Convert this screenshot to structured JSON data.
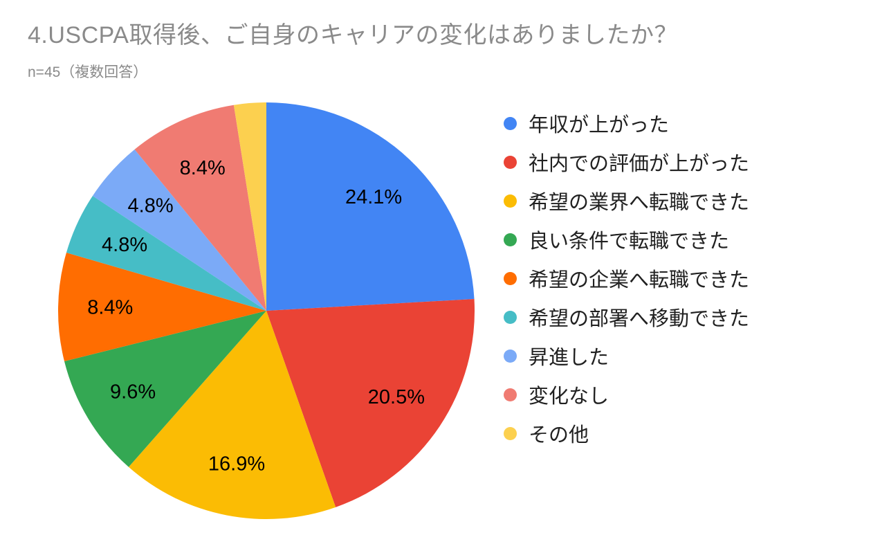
{
  "page": {
    "title": "4.USCPA取得後、ご自身のキャリアの変化はありましたか？",
    "subtitle": "n=45（複数回答）"
  },
  "chart_data": {
    "type": "pie",
    "title": "4.USCPA取得後、ご自身のキャリアの変化はありましたか？",
    "subtitle": "n=45（複数回答）",
    "n_label": "n=45",
    "note": "複数回答",
    "legend_position": "right",
    "start_angle_deg": 0,
    "direction": "clockwise",
    "label_radius_fraction": 0.75,
    "slices": [
      {
        "label": "年収が上がった",
        "value": 24.1,
        "display": "24.1%",
        "color": "#4285F4",
        "label_visible": true
      },
      {
        "label": "社内での評価が上がった",
        "value": 20.5,
        "display": "20.5%",
        "color": "#EA4335",
        "label_visible": true
      },
      {
        "label": "希望の業界へ転職できた",
        "value": 16.9,
        "display": "16.9%",
        "color": "#FBBC04",
        "label_visible": true
      },
      {
        "label": "良い条件で転職できた",
        "value": 9.6,
        "display": "9.6%",
        "color": "#34A853",
        "label_visible": true
      },
      {
        "label": "希望の企業へ転職できた",
        "value": 8.4,
        "display": "8.4%",
        "color": "#FF6D01",
        "label_visible": true
      },
      {
        "label": "希望の部署へ移動できた",
        "value": 4.8,
        "display": "4.8%",
        "color": "#46BDC6",
        "label_visible": true
      },
      {
        "label": "昇進した",
        "value": 4.8,
        "display": "4.8%",
        "color": "#7BAAF7",
        "label_visible": true
      },
      {
        "label": "変化なし",
        "value": 8.4,
        "display": "8.4%",
        "color": "#F07B72",
        "label_visible": true
      },
      {
        "label": "その他",
        "value": 2.5,
        "display": "",
        "color": "#FCD04F",
        "label_visible": false
      }
    ],
    "colors": {
      "title_text": "#8a8a8a",
      "legend_text": "#212121",
      "slice_label_text": "#000000",
      "background": "#ffffff"
    }
  }
}
